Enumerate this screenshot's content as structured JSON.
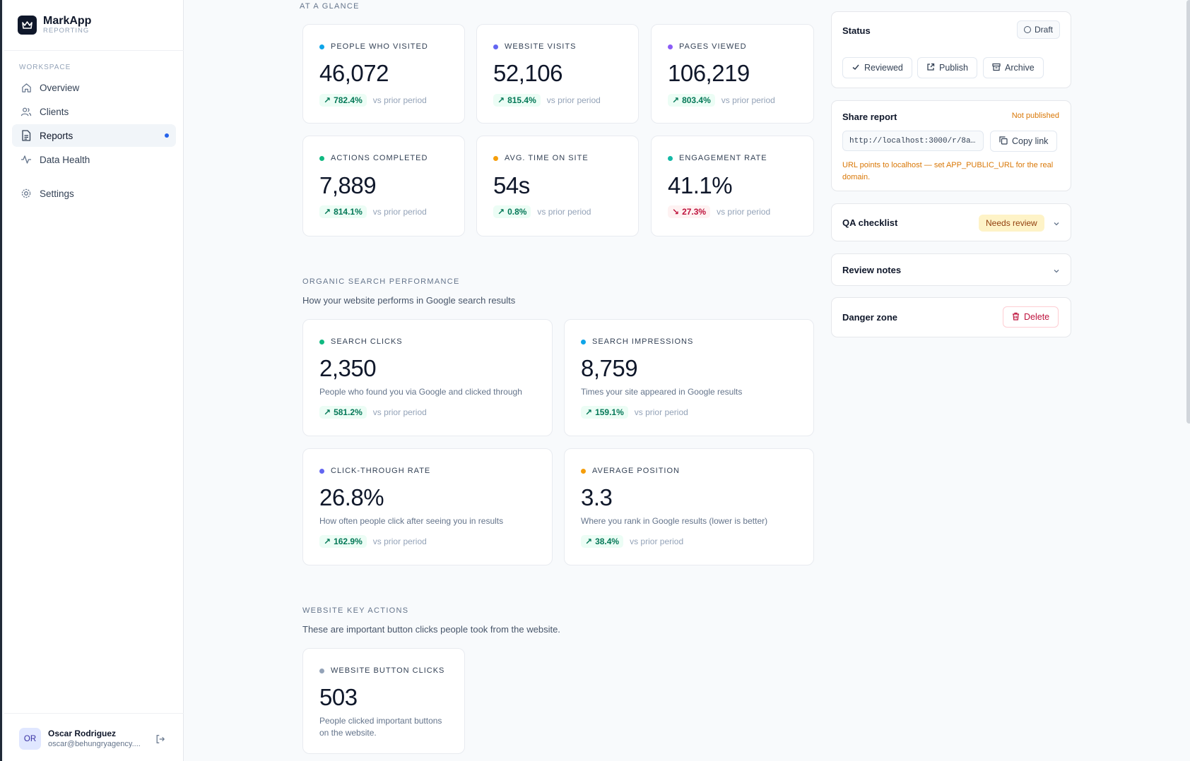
{
  "sidebar": {
    "brand_name": "MarkApp",
    "brand_sub": "REPORTING",
    "section": "WORKSPACE",
    "items": [
      {
        "label": "Overview",
        "icon": "home-icon"
      },
      {
        "label": "Clients",
        "icon": "users-icon"
      },
      {
        "label": "Reports",
        "icon": "document-icon",
        "active": true
      },
      {
        "label": "Data Health",
        "icon": "activity-icon"
      },
      {
        "label": "Settings",
        "icon": "gear-icon"
      }
    ],
    "user": {
      "initials": "OR",
      "name": "Oscar Rodriguez",
      "email": "oscar@behungryagency...."
    }
  },
  "glance": {
    "title": "AT A GLANCE",
    "cards": [
      {
        "label": "PEOPLE WHO VISITED",
        "value": "46,072",
        "delta": "782.4%",
        "trend": "up",
        "vs": "vs prior period",
        "color": "#0ea5e9"
      },
      {
        "label": "WEBSITE VISITS",
        "value": "52,106",
        "delta": "815.4%",
        "trend": "up",
        "vs": "vs prior period",
        "color": "#6366f1"
      },
      {
        "label": "PAGES VIEWED",
        "value": "106,219",
        "delta": "803.4%",
        "trend": "up",
        "vs": "vs prior period",
        "color": "#8b5cf6"
      },
      {
        "label": "ACTIONS COMPLETED",
        "value": "7,889",
        "delta": "814.1%",
        "trend": "up",
        "vs": "vs prior period",
        "color": "#10b981"
      },
      {
        "label": "AVG. TIME ON SITE",
        "value": "54s",
        "delta": "0.8%",
        "trend": "up",
        "vs": "vs prior period",
        "color": "#f59e0b"
      },
      {
        "label": "ENGAGEMENT RATE",
        "value": "41.1%",
        "delta": "27.3%",
        "trend": "down",
        "vs": "vs prior period",
        "color": "#14b8a6"
      }
    ]
  },
  "organic": {
    "title": "ORGANIC SEARCH PERFORMANCE",
    "desc": "How your website performs in Google search results",
    "cards": [
      {
        "label": "SEARCH CLICKS",
        "value": "2,350",
        "desc": "People who found you via Google and clicked through",
        "delta": "581.2%",
        "trend": "up",
        "vs": "vs prior period",
        "color": "#10b981"
      },
      {
        "label": "SEARCH IMPRESSIONS",
        "value": "8,759",
        "desc": "Times your site appeared in Google results",
        "delta": "159.1%",
        "trend": "up",
        "vs": "vs prior period",
        "color": "#0ea5e9"
      },
      {
        "label": "CLICK-THROUGH RATE",
        "value": "26.8%",
        "desc": "How often people click after seeing you in results",
        "delta": "162.9%",
        "trend": "up",
        "vs": "vs prior period",
        "color": "#6366f1"
      },
      {
        "label": "AVERAGE POSITION",
        "value": "3.3",
        "desc": "Where you rank in Google results (lower is better)",
        "delta": "38.4%",
        "trend": "up",
        "vs": "vs prior period",
        "color": "#f59e0b"
      }
    ]
  },
  "key_actions": {
    "title": "WEBSITE KEY ACTIONS",
    "desc": "These are important button clicks people took from the website.",
    "card": {
      "label": "WEBSITE BUTTON CLICKS",
      "value": "503",
      "desc_line1": "People clicked important buttons",
      "desc_line2": "on the website.",
      "color": "#94a3b8"
    }
  },
  "panel": {
    "status_title": "Status",
    "status_badge": "Draft",
    "reviewed": "Reviewed",
    "publish": "Publish",
    "archive": "Archive",
    "share_title": "Share report",
    "share_state": "Not published",
    "share_url": "http://localhost:3000/r/8a…",
    "copy_link": "Copy link",
    "share_warning_1": "URL points to localhost — set APP_PUBLIC_URL for the real",
    "share_warning_2": "domain.",
    "qa_title": "QA checklist",
    "qa_badge": "Needs review",
    "notes_title": "Review notes",
    "danger_title": "Danger zone",
    "delete": "Delete"
  }
}
